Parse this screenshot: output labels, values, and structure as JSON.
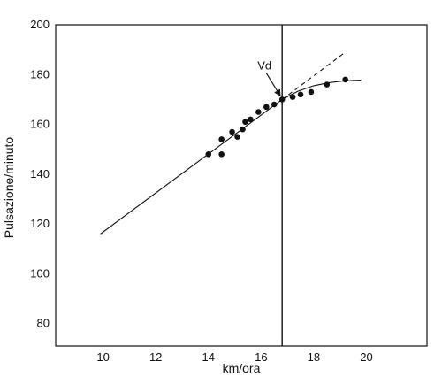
{
  "chart_data": {
    "type": "scatter",
    "title": "",
    "xlabel": "km/ora",
    "ylabel": "Pulsazione/minuto",
    "xlim": [
      8.2,
      22.3
    ],
    "ylim": [
      71,
      200
    ],
    "x_ticks": [
      10,
      12,
      14,
      16,
      18,
      20
    ],
    "y_ticks": [
      80,
      100,
      120,
      140,
      160,
      180,
      200
    ],
    "grid": false,
    "legend": "none",
    "series": [
      {
        "kind": "points",
        "points": [
          {
            "x": 14.0,
            "y": 148
          },
          {
            "x": 14.5,
            "y": 154
          },
          {
            "x": 14.5,
            "y": 148
          },
          {
            "x": 14.9,
            "y": 157
          },
          {
            "x": 15.1,
            "y": 155
          },
          {
            "x": 15.3,
            "y": 158
          },
          {
            "x": 15.4,
            "y": 161
          },
          {
            "x": 15.6,
            "y": 162
          },
          {
            "x": 15.9,
            "y": 165
          },
          {
            "x": 16.2,
            "y": 167
          },
          {
            "x": 16.5,
            "y": 168
          },
          {
            "x": 16.8,
            "y": 170
          },
          {
            "x": 17.2,
            "y": 171
          },
          {
            "x": 17.5,
            "y": 172
          },
          {
            "x": 17.9,
            "y": 173
          },
          {
            "x": 18.5,
            "y": 176
          },
          {
            "x": 19.2,
            "y": 178
          }
        ]
      },
      {
        "kind": "line",
        "style": "solid",
        "points": [
          {
            "x": 9.9,
            "y": 116
          },
          {
            "x": 16.8,
            "y": 170
          }
        ]
      },
      {
        "kind": "line",
        "style": "dashed",
        "points": [
          {
            "x": 16.8,
            "y": 170
          },
          {
            "x": 19.2,
            "y": 189
          }
        ]
      },
      {
        "kind": "curve",
        "style": "solid",
        "points": [
          {
            "x": 16.8,
            "y": 170
          },
          {
            "x": 17.4,
            "y": 173.3
          },
          {
            "x": 18.0,
            "y": 175.5
          },
          {
            "x": 18.6,
            "y": 176.8
          },
          {
            "x": 19.2,
            "y": 177.5
          },
          {
            "x": 19.8,
            "y": 177.8
          }
        ]
      }
    ],
    "vertical_line": {
      "x": 16.8
    },
    "annotations": [
      {
        "text": "Vd",
        "point": {
          "x": 16.8,
          "y": 170
        }
      }
    ]
  }
}
